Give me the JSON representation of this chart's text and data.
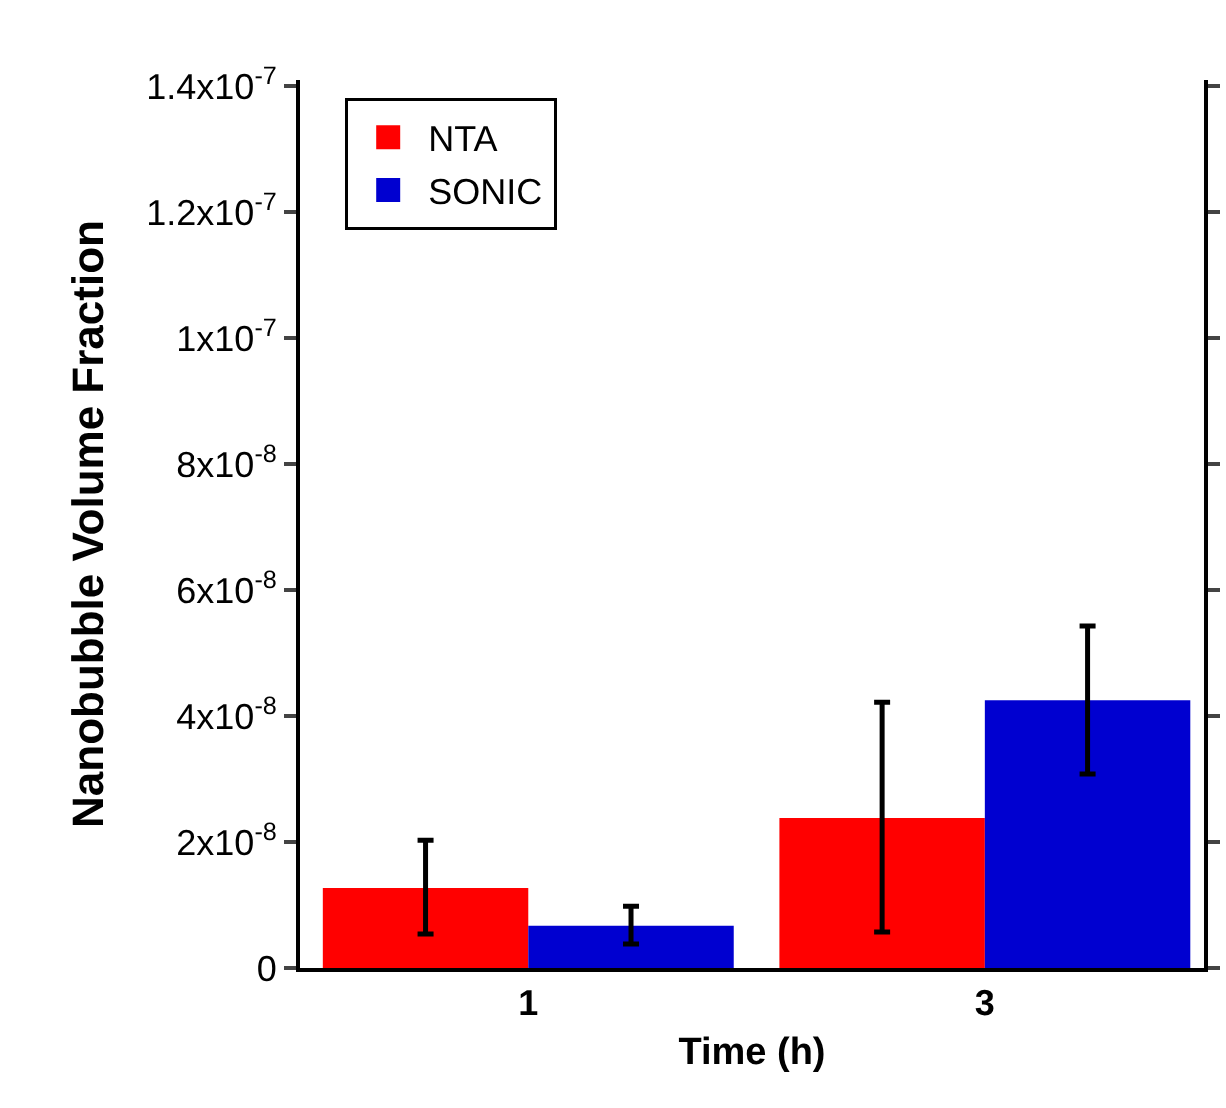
{
  "chart_data": {
    "type": "bar",
    "xlabel": "Time (h)",
    "ylabel": "Nanobubble Volume Fraction",
    "categories": [
      "1",
      "3"
    ],
    "series": [
      {
        "name": "NTA",
        "color": "#ff0000",
        "values": [
          1.27e-08,
          2.38e-08
        ],
        "errors": [
          [
            5.4e-09,
            2.03e-08
          ],
          [
            5.7e-09,
            4.22e-08
          ]
        ]
      },
      {
        "name": "SONIC",
        "color": "#0000d0",
        "values": [
          6.7e-09,
          4.25e-08
        ],
        "errors": [
          [
            3.8e-09,
            9.8e-09
          ],
          [
            3.08e-08,
            5.43e-08
          ]
        ]
      }
    ],
    "ylim": [
      0,
      1.41e-07
    ],
    "yticks": [
      0,
      {
        "value": 2e-08,
        "label": "2x10$^{-8}$"
      },
      {
        "value": 4e-08,
        "label": "4x10$^{-8}$"
      },
      {
        "value": 6e-08,
        "label": "6x10$^{-8}$"
      },
      {
        "value": 8e-08,
        "label": "8x10$^{-8}$"
      },
      {
        "value": 1e-07,
        "label": "1x10$^{-7}$"
      },
      {
        "value": 1.2e-07,
        "label": "1.2x10$^{-7}$"
      },
      {
        "value": 1.4e-07,
        "label": "1.4x10$^{-7}$"
      }
    ],
    "legend": "top left"
  }
}
